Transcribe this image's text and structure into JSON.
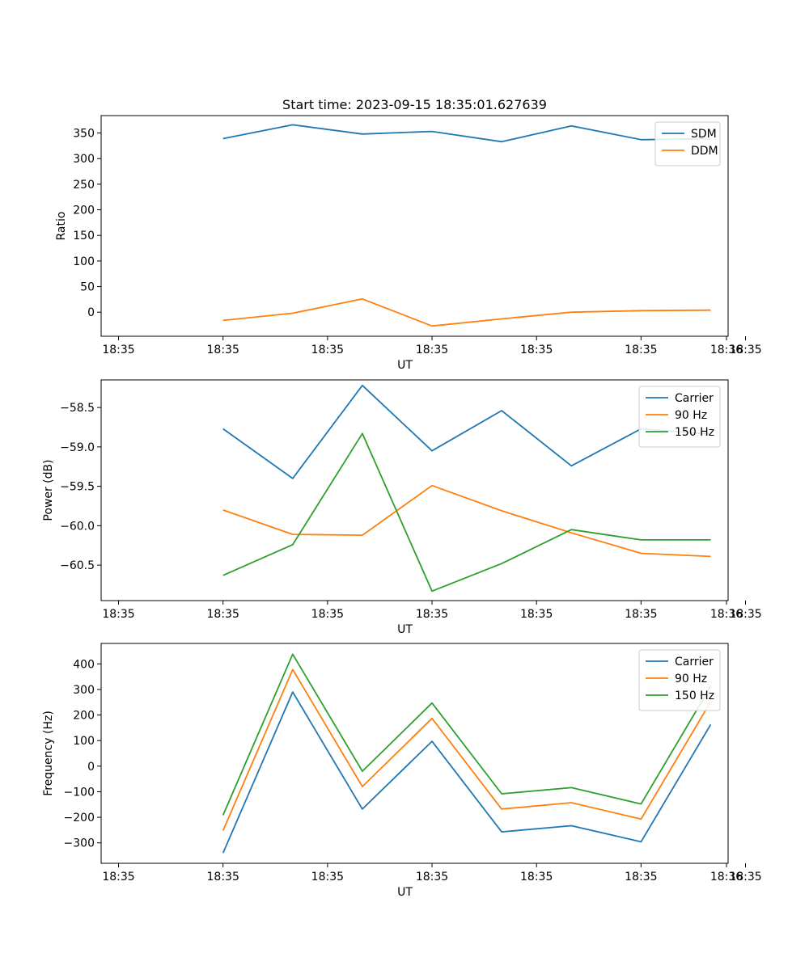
{
  "chart_data": [
    {
      "type": "line",
      "title": "Start time: 2023-09-15 18:35:01.627639",
      "xlabel": "UT",
      "ylabel": "Ratio",
      "x": [
        1,
        2,
        3,
        4,
        5,
        6,
        7,
        8
      ],
      "xlim": [
        -0.75,
        8.25
      ],
      "ylim": [
        -47,
        384
      ],
      "xticks": [
        -0.5,
        1,
        2.5,
        4,
        5.5,
        7,
        8.5
      ],
      "xtick_labels": [
        "18:35",
        "18:35",
        "18:35",
        "18:35",
        "18:35",
        "18:35",
        "18:35",
        "18:36"
      ],
      "yticks": [
        0,
        50,
        100,
        150,
        200,
        250,
        300,
        350
      ],
      "series": [
        {
          "name": "SDM",
          "color": "#1f77b4",
          "values": [
            339,
            366,
            348,
            353,
            333,
            364,
            337,
            339
          ]
        },
        {
          "name": "DDM",
          "color": "#ff7f0e",
          "values": [
            -16,
            -2,
            26,
            -27,
            -13,
            0,
            3,
            4
          ]
        }
      ],
      "legend": "upper right"
    },
    {
      "type": "line",
      "title": "",
      "xlabel": "UT",
      "ylabel": "Power (dB)",
      "x": [
        1,
        2,
        3,
        4,
        5,
        6,
        7,
        8
      ],
      "xlim": [
        -0.75,
        8.25
      ],
      "ylim": [
        -60.95,
        -58.15
      ],
      "xticks": [
        -0.5,
        1,
        2.5,
        4,
        5.5,
        7,
        8.5
      ],
      "xtick_labels": [
        "18:35",
        "18:35",
        "18:35",
        "18:35",
        "18:35",
        "18:35",
        "18:35",
        "18:36"
      ],
      "yticks": [
        -58.5,
        -59.0,
        -59.5,
        -60.0,
        -60.5
      ],
      "ytick_labels": [
        "−58.5",
        "−59.0",
        "−59.5",
        "−60.0",
        "−60.5"
      ],
      "series": [
        {
          "name": "Carrier",
          "color": "#1f77b4",
          "values": [
            -58.77,
            -59.4,
            -58.22,
            -59.05,
            -58.54,
            -59.24,
            -58.77,
            -58.84
          ]
        },
        {
          "name": "90 Hz",
          "color": "#ff7f0e",
          "values": [
            -59.8,
            -60.11,
            -60.12,
            -59.49,
            -59.81,
            -60.09,
            -60.35,
            -60.39
          ]
        },
        {
          "name": "150 Hz",
          "color": "#2ca02c",
          "values": [
            -60.63,
            -60.24,
            -58.83,
            -60.83,
            -60.48,
            -60.05,
            -60.18,
            -60.18
          ]
        }
      ],
      "legend": "upper right"
    },
    {
      "type": "line",
      "title": "",
      "xlabel": "UT",
      "ylabel": "Frequency (Hz)",
      "x": [
        1,
        2,
        3,
        4,
        5,
        6,
        7,
        8
      ],
      "xlim": [
        -0.75,
        8.25
      ],
      "ylim": [
        -380,
        480
      ],
      "xticks": [
        -0.5,
        1,
        2.5,
        4,
        5.5,
        7,
        8.5
      ],
      "xtick_labels": [
        "18:35",
        "18:35",
        "18:35",
        "18:35",
        "18:35",
        "18:35",
        "18:35",
        "18:36"
      ],
      "yticks": [
        -300,
        -200,
        -100,
        0,
        100,
        200,
        300,
        400
      ],
      "ytick_labels": [
        "−300",
        "−200",
        "−100",
        "0",
        "100",
        "200",
        "300",
        "400"
      ],
      "series": [
        {
          "name": "Carrier",
          "color": "#1f77b4",
          "values": [
            -340,
            290,
            -168,
            97,
            -257,
            -233,
            -296,
            163
          ]
        },
        {
          "name": "90 Hz",
          "color": "#ff7f0e",
          "values": [
            -252,
            378,
            -80,
            187,
            -168,
            -143,
            -207,
            252
          ]
        },
        {
          "name": "150 Hz",
          "color": "#2ca02c",
          "values": [
            -192,
            438,
            -20,
            247,
            -108,
            -84,
            -148,
            312
          ]
        }
      ],
      "legend": "upper right"
    }
  ]
}
